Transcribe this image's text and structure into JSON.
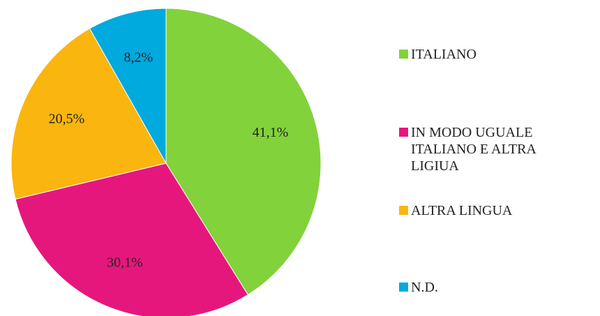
{
  "chart_data": {
    "type": "pie",
    "categories": [
      "ITALIANO",
      "IN MODO UGUALE ITALIANO E ALTRA LIGIUA",
      "ALTRA LINGUA",
      "N.D."
    ],
    "values": [
      41.1,
      30.1,
      20.5,
      8.2
    ],
    "value_labels": [
      "41,1%",
      "30,1%",
      "20,5%",
      "8,2%"
    ],
    "colors": [
      "#82d23c",
      "#e6177c",
      "#fbb50f",
      "#00a9de"
    ],
    "legend": "right"
  }
}
